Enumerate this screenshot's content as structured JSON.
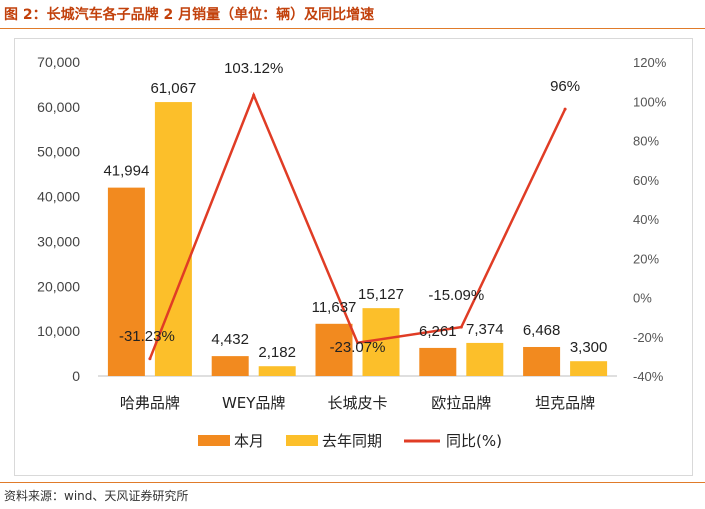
{
  "header": {
    "title": "图 2：长城汽车各子品牌 2 月销量（单位：辆）及同比增速"
  },
  "footer": {
    "source": "资料来源：wind、天风证券研究所"
  },
  "colors": {
    "current": "#f28a1f",
    "last_year": "#fcbf2a",
    "yoy": "#e03c25",
    "accent": "#e07b2a"
  },
  "chart_data": {
    "type": "bar",
    "title": "",
    "categories": [
      "哈弗品牌",
      "WEY品牌",
      "长城皮卡",
      "欧拉品牌",
      "坦克品牌"
    ],
    "series": [
      {
        "name": "本月",
        "type": "bar",
        "axis": "left",
        "values": [
          41994,
          4432,
          11637,
          6261,
          6468
        ],
        "labels": [
          "41,994",
          "4,432",
          "11,637",
          "6,261",
          "6,468"
        ]
      },
      {
        "name": "去年同期",
        "type": "bar",
        "axis": "left",
        "values": [
          61067,
          2182,
          15127,
          7374,
          3300
        ],
        "labels": [
          "61,067",
          "2,182",
          "15,127",
          "7,374",
          "3,300"
        ]
      },
      {
        "name": "同比(%)",
        "type": "line",
        "axis": "right",
        "values": [
          -31.23,
          103.12,
          -23.07,
          -15.09,
          96
        ],
        "labels": [
          "-31.23%",
          "103.12%",
          "-23.07%",
          "-15.09%",
          "96%"
        ]
      }
    ],
    "y_left": {
      "min": 0,
      "max": 70000,
      "step": 10000,
      "ticks": [
        "0",
        "10,000",
        "20,000",
        "30,000",
        "40,000",
        "50,000",
        "60,000",
        "70,000"
      ]
    },
    "y_right": {
      "min": -40,
      "max": 120,
      "step": 20,
      "ticks": [
        "-40%",
        "-20%",
        "0%",
        "20%",
        "40%",
        "60%",
        "80%",
        "100%",
        "120%"
      ]
    },
    "legend": {
      "position": "bottom",
      "entries": [
        "本月",
        "去年同期",
        "同比(%)"
      ]
    },
    "grid": false
  }
}
